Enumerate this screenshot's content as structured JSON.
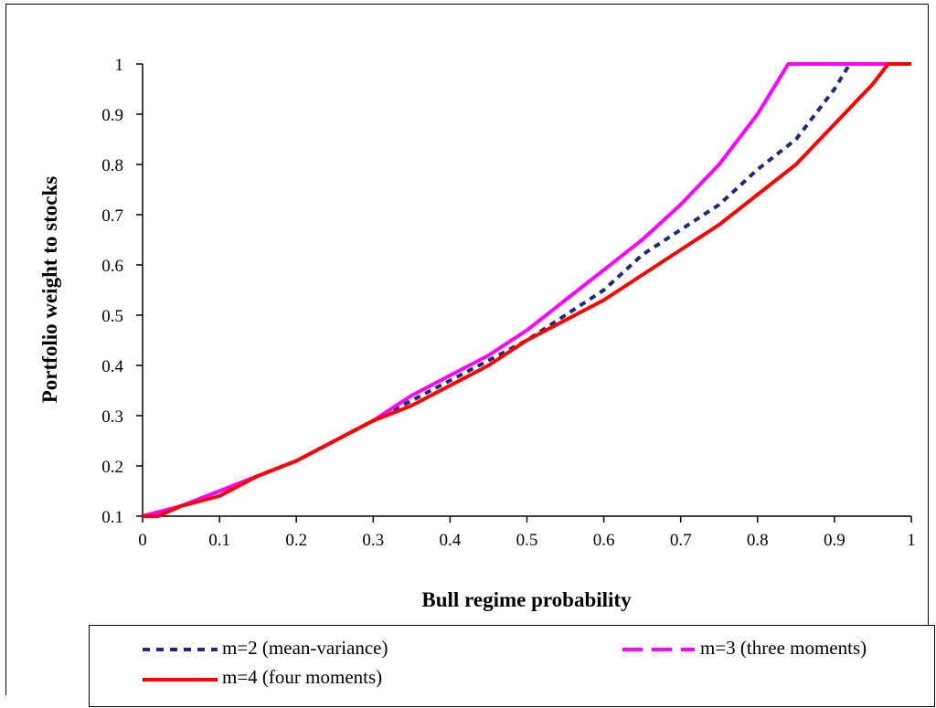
{
  "chart_data": {
    "type": "line",
    "xlabel": "Bull regime probability",
    "ylabel": "Portfolio weight to stocks",
    "xlim": [
      0,
      1
    ],
    "ylim": [
      0.1,
      1
    ],
    "x_ticks": [
      "0",
      "0.1",
      "0.2",
      "0.3",
      "0.4",
      "0.5",
      "0.6",
      "0.7",
      "0.8",
      "0.9",
      "1"
    ],
    "y_ticks": [
      "0.1",
      "0.2",
      "0.3",
      "0.4",
      "0.5",
      "0.6",
      "0.7",
      "0.8",
      "0.9",
      "1"
    ],
    "grid": false,
    "legend_position": "bottom",
    "series": [
      {
        "name": "m=2 (mean-variance)",
        "color": "#1f2a7a",
        "style": "dotted",
        "x": [
          0,
          0.05,
          0.1,
          0.15,
          0.2,
          0.25,
          0.3,
          0.35,
          0.4,
          0.45,
          0.5,
          0.55,
          0.6,
          0.65,
          0.7,
          0.75,
          0.8,
          0.85,
          0.9,
          0.92,
          0.95,
          1
        ],
        "y": [
          0.1,
          0.12,
          0.15,
          0.18,
          0.21,
          0.25,
          0.29,
          0.33,
          0.37,
          0.41,
          0.45,
          0.5,
          0.55,
          0.62,
          0.67,
          0.72,
          0.79,
          0.85,
          0.95,
          1,
          1,
          1
        ]
      },
      {
        "name": "m=3 (three moments)",
        "color": "#ff00ff",
        "style": "dashed",
        "x": [
          0,
          0.05,
          0.1,
          0.15,
          0.2,
          0.25,
          0.3,
          0.35,
          0.4,
          0.45,
          0.5,
          0.55,
          0.6,
          0.65,
          0.7,
          0.75,
          0.8,
          0.84,
          0.85,
          0.9,
          1
        ],
        "y": [
          0.1,
          0.12,
          0.15,
          0.18,
          0.21,
          0.25,
          0.29,
          0.34,
          0.38,
          0.42,
          0.47,
          0.53,
          0.59,
          0.65,
          0.72,
          0.8,
          0.9,
          1,
          1,
          1,
          1
        ]
      },
      {
        "name": "m=4 (four moments)",
        "color": "#ff0000",
        "style": "solid",
        "x": [
          0,
          0.02,
          0.05,
          0.1,
          0.15,
          0.2,
          0.25,
          0.3,
          0.35,
          0.4,
          0.45,
          0.5,
          0.55,
          0.6,
          0.65,
          0.7,
          0.75,
          0.8,
          0.85,
          0.9,
          0.95,
          0.97,
          1
        ],
        "y": [
          0.1,
          0.1,
          0.12,
          0.14,
          0.18,
          0.21,
          0.25,
          0.29,
          0.32,
          0.36,
          0.4,
          0.45,
          0.49,
          0.53,
          0.58,
          0.63,
          0.68,
          0.74,
          0.8,
          0.88,
          0.96,
          1,
          1
        ]
      }
    ]
  }
}
